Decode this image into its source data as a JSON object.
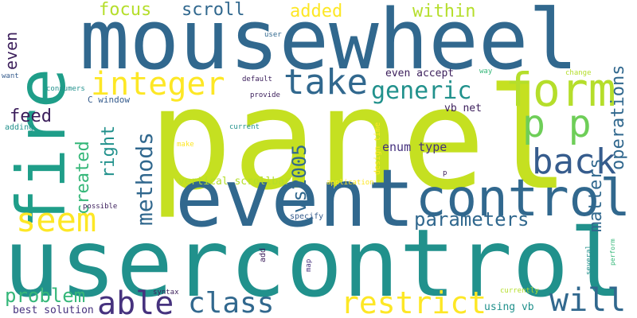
{
  "palette": {
    "navy": "#3b1e5b",
    "indigo": "#46327e",
    "steel": "#365c8d",
    "blue": "#31688e",
    "teal": "#21918c",
    "sea": "#1f9e89",
    "green": "#35b779",
    "lime": "#6ece58",
    "yellow_green": "#b5de2b",
    "yellow": "#fde725",
    "lime_bright": "#c5e021"
  },
  "words": [
    {
      "text": "panel",
      "color": "#c5e021"
    },
    {
      "text": "usercontrol",
      "color": "#21918c"
    },
    {
      "text": "mousewheel",
      "color": "#31688e"
    },
    {
      "text": "event",
      "color": "#31688e"
    },
    {
      "text": "fire",
      "color": "#1f9e89"
    },
    {
      "text": "control",
      "color": "#31688e"
    },
    {
      "text": "form",
      "color": "#b5de2b"
    },
    {
      "text": "p p",
      "color": "#6ece58"
    },
    {
      "text": "take",
      "color": "#31688e"
    },
    {
      "text": "integer",
      "color": "#fde725"
    },
    {
      "text": "back",
      "color": "#365c8d"
    },
    {
      "text": "seem",
      "color": "#fde725"
    },
    {
      "text": "will",
      "color": "#31688e"
    },
    {
      "text": "able",
      "color": "#46327e"
    },
    {
      "text": "class",
      "color": "#31688e"
    },
    {
      "text": "restrict",
      "color": "#fde725"
    },
    {
      "text": "generic",
      "color": "#21918c"
    },
    {
      "text": "methods",
      "color": "#31688e"
    },
    {
      "text": "parameters",
      "color": "#31688e"
    },
    {
      "text": "operations",
      "color": "#31688e"
    },
    {
      "text": "matters",
      "color": "#31688e"
    },
    {
      "text": "problem",
      "color": "#35b779"
    },
    {
      "text": "vs2005",
      "color": "#31688e"
    },
    {
      "text": "created",
      "color": "#35b779"
    },
    {
      "text": "right",
      "color": "#21918c"
    },
    {
      "text": "feed",
      "color": "#3b1e5b"
    },
    {
      "text": "focus",
      "color": "#b5de2b"
    },
    {
      "text": "scroll",
      "color": "#31688e"
    },
    {
      "text": "added",
      "color": "#fde725"
    },
    {
      "text": "within",
      "color": "#b5de2b"
    },
    {
      "text": "even",
      "color": "#3b1e5b"
    },
    {
      "text": "enum type",
      "color": "#46327e"
    },
    {
      "text": "even accept",
      "color": "#3b1e5b"
    },
    {
      "text": "vb net",
      "color": "#3b1e5b"
    },
    {
      "text": "using vb",
      "color": "#21918c"
    },
    {
      "text": "best solution",
      "color": "#46327e"
    },
    {
      "text": "vertical scrollbar",
      "color": "#b5de2b"
    },
    {
      "text": "C window",
      "color": "#365c8d"
    },
    {
      "text": "design time",
      "color": "#fde725"
    },
    {
      "text": "application",
      "color": "#fde725"
    },
    {
      "text": "specify",
      "color": "#365c8d"
    },
    {
      "text": "several",
      "color": "#21918c"
    },
    {
      "text": "perform",
      "color": "#35b779"
    },
    {
      "text": "currently",
      "color": "#b5de2b"
    },
    {
      "text": "type",
      "color": "#21918c"
    },
    {
      "text": "syntax",
      "color": "#3b1e5b"
    },
    {
      "text": "map",
      "color": "#46327e"
    },
    {
      "text": "add",
      "color": "#3b1e5b"
    },
    {
      "text": "possible",
      "color": "#3b1e5b"
    },
    {
      "text": "adding",
      "color": "#21918c"
    },
    {
      "text": "make",
      "color": "#fde725"
    },
    {
      "text": "current",
      "color": "#21918c"
    },
    {
      "text": "provide",
      "color": "#3b1e5b"
    },
    {
      "text": "default",
      "color": "#3b1e5b"
    },
    {
      "text": "consumers",
      "color": "#21918c"
    },
    {
      "text": "want",
      "color": "#365c8d"
    },
    {
      "text": "user",
      "color": "#31688e"
    },
    {
      "text": "way",
      "color": "#35b779"
    },
    {
      "text": "change",
      "color": "#b5de2b"
    },
    {
      "text": "p",
      "color": "#3b1e5b"
    }
  ]
}
